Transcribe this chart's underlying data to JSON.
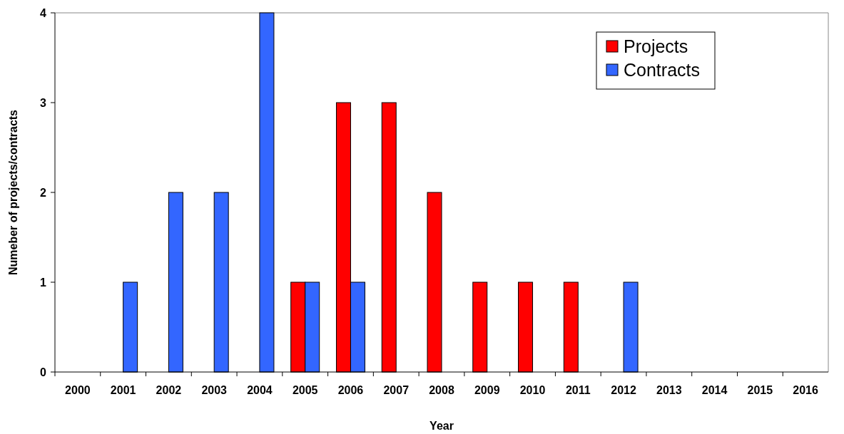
{
  "chart_data": {
    "type": "bar",
    "xlabel": "Year",
    "ylabel": "Numeber of projects/contracts",
    "categories": [
      "2000",
      "2001",
      "2002",
      "2003",
      "2004",
      "2005",
      "2006",
      "2007",
      "2008",
      "2009",
      "2010",
      "2011",
      "2012",
      "2013",
      "2014",
      "2015",
      "2016"
    ],
    "series": [
      {
        "name": "Projects",
        "color": "#ff0000",
        "values": [
          0,
          0,
          0,
          0,
          0,
          1,
          3,
          3,
          2,
          1,
          1,
          1,
          0,
          0,
          0,
          0,
          0
        ]
      },
      {
        "name": "Contracts",
        "color": "#3366ff",
        "values": [
          0,
          1,
          2,
          2,
          4,
          1,
          1,
          0,
          0,
          0,
          0,
          0,
          1,
          0,
          0,
          0,
          0
        ]
      }
    ],
    "ylim": [
      0,
      4
    ],
    "yticks": [
      0,
      1,
      2,
      3,
      4
    ],
    "grid": false,
    "legend": "top right"
  }
}
